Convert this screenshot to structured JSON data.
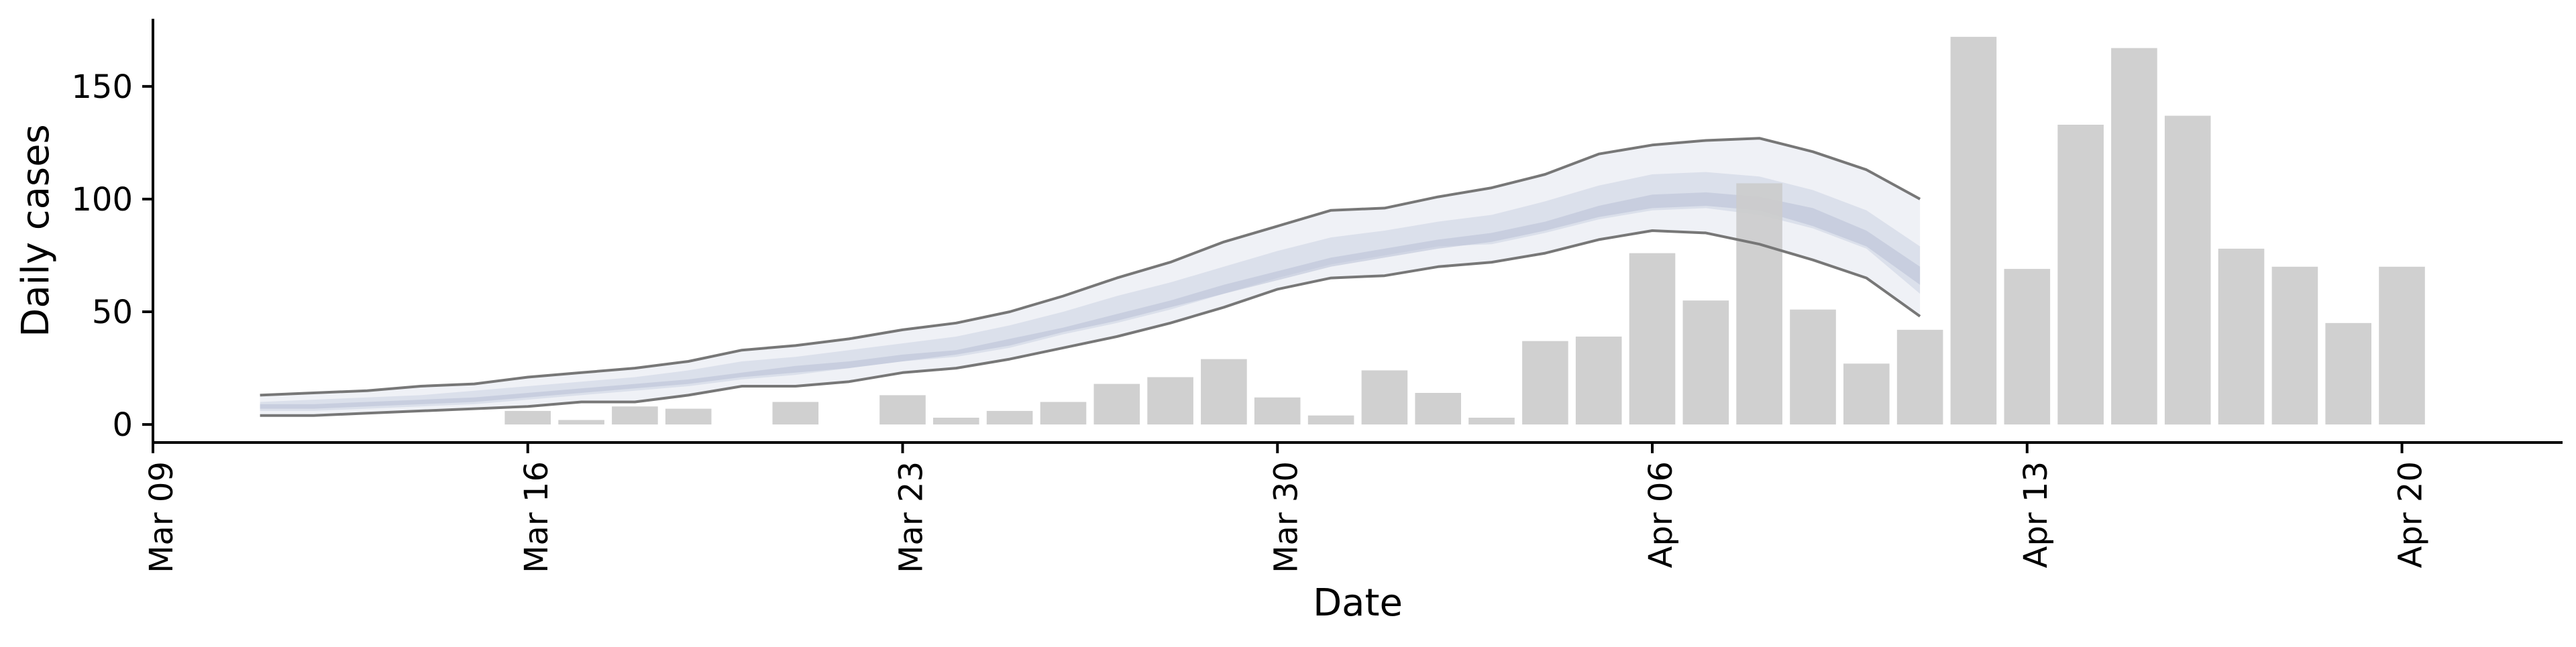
{
  "chart_data": {
    "type": "bar",
    "xlabel": "Date",
    "ylabel": "Daily cases",
    "x_ticks": [
      "Mar 09",
      "Mar 16",
      "Mar 23",
      "Mar 30",
      "Apr 06",
      "Apr 13",
      "Apr 20"
    ],
    "y_ticks": [
      0,
      50,
      100,
      150
    ],
    "ylim": [
      -8,
      180
    ],
    "xlim": [
      "2020-03-09",
      "2020-04-23"
    ],
    "grid": false,
    "legend": "none",
    "bar_color": "#cccccc",
    "band_color": "#b8bfd6",
    "line_color": "#777777",
    "bars": [
      {
        "date": "2020-03-16",
        "value": 6
      },
      {
        "date": "2020-03-17",
        "value": 2
      },
      {
        "date": "2020-03-18",
        "value": 8
      },
      {
        "date": "2020-03-19",
        "value": 7
      },
      {
        "date": "2020-03-21",
        "value": 10
      },
      {
        "date": "2020-03-23",
        "value": 13
      },
      {
        "date": "2020-03-24",
        "value": 3
      },
      {
        "date": "2020-03-25",
        "value": 6
      },
      {
        "date": "2020-03-26",
        "value": 10
      },
      {
        "date": "2020-03-27",
        "value": 18
      },
      {
        "date": "2020-03-28",
        "value": 21
      },
      {
        "date": "2020-03-29",
        "value": 29
      },
      {
        "date": "2020-03-30",
        "value": 12
      },
      {
        "date": "2020-03-31",
        "value": 4
      },
      {
        "date": "2020-04-01",
        "value": 24
      },
      {
        "date": "2020-04-02",
        "value": 14
      },
      {
        "date": "2020-04-03",
        "value": 3
      },
      {
        "date": "2020-04-04",
        "value": 37
      },
      {
        "date": "2020-04-05",
        "value": 39
      },
      {
        "date": "2020-04-06",
        "value": 76
      },
      {
        "date": "2020-04-07",
        "value": 55
      },
      {
        "date": "2020-04-08",
        "value": 107
      },
      {
        "date": "2020-04-09",
        "value": 51
      },
      {
        "date": "2020-04-10",
        "value": 27
      },
      {
        "date": "2020-04-11",
        "value": 42
      },
      {
        "date": "2020-04-12",
        "value": 172
      },
      {
        "date": "2020-04-13",
        "value": 69
      },
      {
        "date": "2020-04-14",
        "value": 133
      },
      {
        "date": "2020-04-15",
        "value": 167
      },
      {
        "date": "2020-04-16",
        "value": 137
      },
      {
        "date": "2020-04-17",
        "value": 78
      },
      {
        "date": "2020-04-18",
        "value": 70
      },
      {
        "date": "2020-04-19",
        "value": 45
      },
      {
        "date": "2020-04-20",
        "value": 70
      }
    ],
    "forecast": {
      "dates": [
        "2020-03-11",
        "2020-03-12",
        "2020-03-13",
        "2020-03-14",
        "2020-03-15",
        "2020-03-16",
        "2020-03-17",
        "2020-03-18",
        "2020-03-19",
        "2020-03-20",
        "2020-03-21",
        "2020-03-22",
        "2020-03-23",
        "2020-03-24",
        "2020-03-25",
        "2020-03-26",
        "2020-03-27",
        "2020-03-28",
        "2020-03-29",
        "2020-03-30",
        "2020-03-31",
        "2020-04-01",
        "2020-04-02",
        "2020-04-03",
        "2020-04-04",
        "2020-04-05",
        "2020-04-06",
        "2020-04-07",
        "2020-04-08",
        "2020-04-09",
        "2020-04-10",
        "2020-04-11"
      ],
      "upper": [
        13,
        14,
        15,
        17,
        18,
        21,
        23,
        25,
        28,
        33,
        35,
        38,
        42,
        45,
        50,
        57,
        65,
        72,
        81,
        88,
        95,
        96,
        101,
        105,
        111,
        120,
        124,
        126,
        127,
        121,
        113,
        100
      ],
      "lower": [
        4,
        4,
        5,
        6,
        7,
        8,
        10,
        10,
        13,
        17,
        17,
        19,
        23,
        25,
        29,
        34,
        39,
        45,
        52,
        60,
        65,
        66,
        70,
        72,
        76,
        82,
        86,
        85,
        80,
        73,
        65,
        48
      ],
      "outer_hi": [
        10,
        11,
        12,
        13,
        15,
        17,
        19,
        21,
        24,
        28,
        30,
        33,
        36,
        39,
        44,
        50,
        57,
        63,
        70,
        77,
        83,
        86,
        90,
        93,
        99,
        106,
        111,
        112,
        110,
        104,
        95,
        79
      ],
      "outer_lo": [
        6,
        6,
        7,
        8,
        9,
        11,
        13,
        15,
        17,
        20,
        22,
        25,
        28,
        30,
        34,
        40,
        45,
        51,
        58,
        65,
        71,
        75,
        79,
        80,
        85,
        91,
        95,
        96,
        93,
        87,
        78,
        58
      ],
      "inner_hi": [
        9,
        9,
        10,
        11,
        12,
        14,
        16,
        18,
        20,
        23,
        26,
        28,
        31,
        33,
        38,
        43,
        49,
        55,
        62,
        68,
        74,
        78,
        82,
        85,
        90,
        97,
        102,
        103,
        101,
        96,
        86,
        70
      ],
      "inner_lo": [
        7,
        7,
        8,
        9,
        10,
        12,
        14,
        16,
        18,
        21,
        23,
        25,
        28,
        31,
        35,
        41,
        46,
        52,
        58,
        64,
        70,
        74,
        78,
        81,
        86,
        92,
        96,
        97,
        95,
        88,
        79,
        62
      ]
    }
  }
}
